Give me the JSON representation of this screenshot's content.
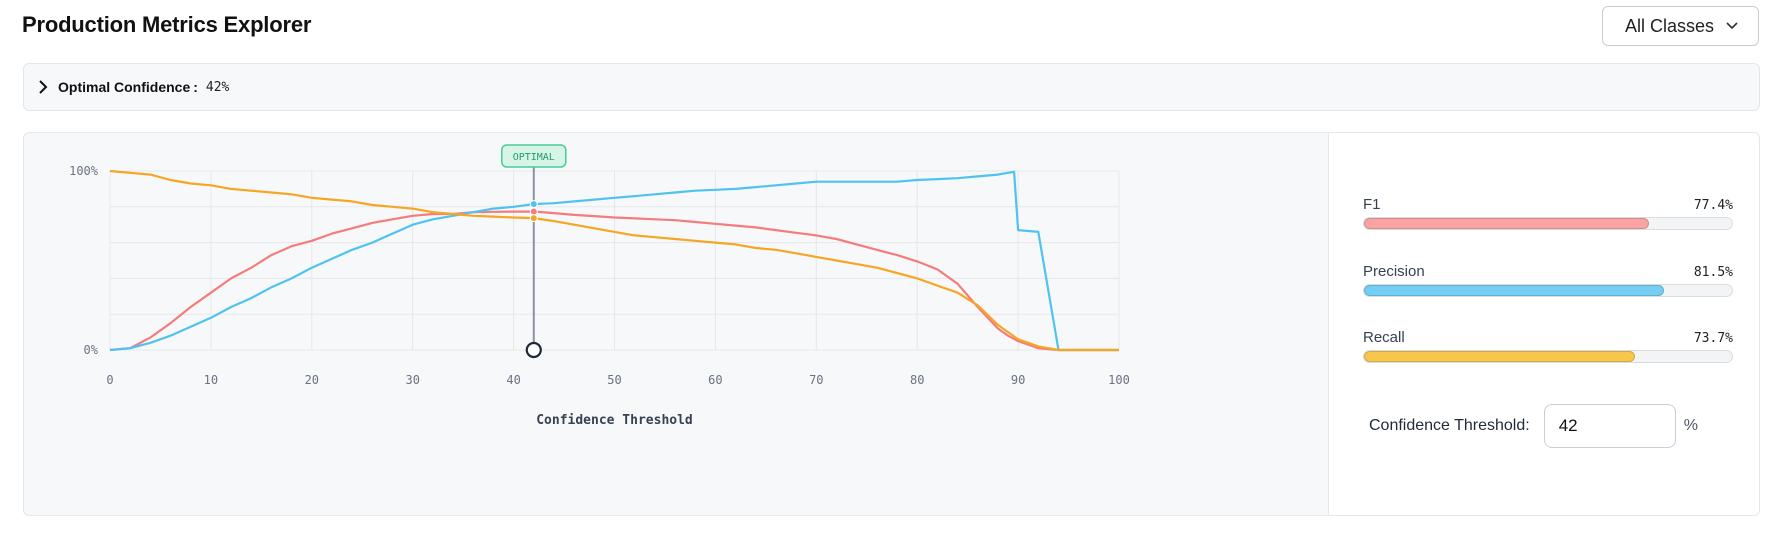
{
  "header": {
    "title": "Production Metrics Explorer",
    "class_filter": "All Classes"
  },
  "summary": {
    "label": "Optimal Confidence",
    "colon": ":",
    "value": "42%",
    "expand_icon": "chevron-right-icon"
  },
  "chart_data": {
    "type": "line",
    "xlabel": "Confidence Threshold",
    "xlim": [
      0,
      100
    ],
    "ylim": [
      0,
      100
    ],
    "x_ticks": [
      "0",
      "10",
      "20",
      "30",
      "40",
      "50",
      "60",
      "70",
      "80",
      "90",
      "100"
    ],
    "y_ticks": [
      "0%",
      "100%"
    ],
    "grid": true,
    "optimal_x": 42,
    "optimal_label": "OPTIMAL",
    "series": [
      {
        "name": "F1",
        "color": "#f47c7c",
        "x": [
          0,
          2,
          4,
          6,
          8,
          10,
          12,
          14,
          16,
          18,
          20,
          22,
          24,
          26,
          28,
          30,
          32,
          34,
          36,
          38,
          40,
          42,
          44,
          46,
          48,
          50,
          52,
          54,
          56,
          58,
          60,
          62,
          64,
          66,
          68,
          70,
          72,
          74,
          76,
          78,
          80,
          82,
          84,
          86,
          88,
          89,
          90,
          91,
          92,
          93,
          94,
          100
        ],
        "y": [
          0,
          1,
          7,
          15,
          24,
          32,
          40,
          46,
          53,
          58,
          61,
          65,
          68,
          71,
          73,
          75,
          76,
          76,
          77,
          77.2,
          77.3,
          77.4,
          76.5,
          75.5,
          74.8,
          74,
          73.5,
          73,
          72.5,
          71.5,
          70.5,
          69.5,
          68.5,
          67,
          65.5,
          64,
          62,
          59,
          56,
          53,
          49.5,
          45,
          37,
          24,
          12,
          8,
          5,
          3,
          1,
          0.5,
          0,
          0
        ]
      },
      {
        "name": "Precision",
        "color": "#4fc3f0",
        "x": [
          0,
          2,
          4,
          6,
          8,
          10,
          12,
          14,
          16,
          18,
          20,
          22,
          24,
          26,
          28,
          30,
          32,
          34,
          36,
          38,
          40,
          42,
          44,
          46,
          48,
          50,
          52,
          54,
          56,
          58,
          60,
          62,
          64,
          66,
          68,
          70,
          72,
          74,
          76,
          78,
          80,
          82,
          84,
          86,
          87,
          88,
          89,
          89.6,
          90,
          91,
          92,
          94,
          100
        ],
        "y": [
          0,
          1,
          4,
          8,
          13,
          18,
          24,
          29,
          35,
          40,
          46,
          51,
          56,
          60,
          65,
          70,
          73,
          75,
          77,
          79,
          80,
          81.5,
          82,
          83,
          84,
          85,
          86,
          87,
          88,
          89,
          89.5,
          90,
          91,
          92,
          93,
          94,
          94,
          94,
          94,
          94,
          95,
          95.5,
          96,
          97,
          97.5,
          98,
          99,
          99.5,
          67,
          66.5,
          66,
          0,
          0
        ]
      },
      {
        "name": "Recall",
        "color": "#f5a623",
        "x": [
          0,
          2,
          4,
          6,
          8,
          10,
          12,
          14,
          16,
          18,
          20,
          22,
          24,
          26,
          28,
          30,
          32,
          34,
          36,
          38,
          40,
          42,
          44,
          46,
          48,
          50,
          52,
          54,
          56,
          58,
          60,
          62,
          64,
          66,
          68,
          70,
          72,
          74,
          76,
          78,
          80,
          82,
          84,
          86,
          88,
          89,
          90,
          91,
          92,
          93,
          94,
          100
        ],
        "y": [
          100,
          99,
          98,
          95,
          93,
          92,
          90,
          89,
          88,
          87,
          85,
          84,
          83,
          81,
          80,
          79,
          77,
          76,
          75,
          74.5,
          74,
          73.7,
          72,
          70,
          68,
          66,
          64,
          63,
          62,
          61,
          60,
          59,
          57,
          56,
          54,
          52,
          50,
          48,
          46,
          43,
          40,
          36,
          32,
          25,
          14,
          10,
          6,
          4,
          2,
          1,
          0,
          0
        ]
      }
    ]
  },
  "metrics": [
    {
      "name": "F1",
      "value": "77.4%",
      "fraction": 0.774,
      "color": "#f9a3a3"
    },
    {
      "name": "Precision",
      "value": "81.5%",
      "fraction": 0.815,
      "color": "#74cdf2"
    },
    {
      "name": "Recall",
      "value": "73.7%",
      "fraction": 0.737,
      "color": "#f8c64a"
    }
  ],
  "threshold": {
    "label": "Confidence Threshold:",
    "value": "42",
    "unit": "%"
  }
}
